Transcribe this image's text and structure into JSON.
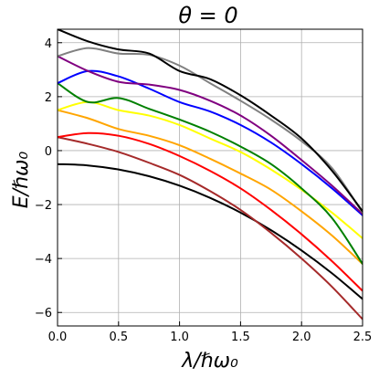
{
  "chart_data": {
    "type": "line",
    "title": "θ = 0",
    "xlabel": "λ/ℏω₀",
    "ylabel": "E/ℏω₀",
    "xlim": [
      0.0,
      2.5
    ],
    "ylim": [
      -6.5,
      4.5
    ],
    "grid": true,
    "x_ticks": [
      0.0,
      0.5,
      1.0,
      1.5,
      2.0,
      2.5
    ],
    "x_tick_labels": [
      "0.0",
      "0.5",
      "1.0",
      "1.5",
      "2.0",
      "2.5"
    ],
    "y_ticks": [
      4,
      2,
      0,
      -2,
      -4,
      -6
    ],
    "y_tick_labels": [
      "4",
      "2",
      "0",
      "−2",
      "−4",
      "−6"
    ],
    "series": [
      {
        "color": "#000000",
        "x": [
          0,
          0.25,
          0.5,
          0.75,
          1.0,
          1.25,
          1.5,
          1.75,
          2.0,
          2.25,
          2.5
        ],
        "values": [
          -0.5,
          -0.55,
          -0.7,
          -0.95,
          -1.3,
          -1.75,
          -2.3,
          -2.95,
          -3.7,
          -4.55,
          -5.5
        ]
      },
      {
        "color": "#a52a2a",
        "x": [
          0,
          0.25,
          0.5,
          0.75,
          1.0,
          1.25,
          1.5,
          1.75,
          2.0,
          2.25,
          2.5
        ],
        "values": [
          0.5,
          0.25,
          -0.05,
          -0.45,
          -0.9,
          -1.5,
          -2.2,
          -3.05,
          -4.0,
          -5.05,
          -6.25
        ]
      },
      {
        "color": "#ff0000",
        "x": [
          0,
          0.25,
          0.5,
          0.75,
          1.0,
          1.25,
          1.5,
          1.75,
          2.0,
          2.25,
          2.5
        ],
        "values": [
          0.5,
          0.65,
          0.55,
          0.25,
          -0.2,
          -0.75,
          -1.4,
          -2.2,
          -3.1,
          -4.1,
          -5.2
        ]
      },
      {
        "color": "#ffa500",
        "x": [
          0,
          0.25,
          0.5,
          0.75,
          1.0,
          1.25,
          1.5,
          1.75,
          2.0,
          2.25,
          2.5
        ],
        "values": [
          1.5,
          1.2,
          0.8,
          0.55,
          0.2,
          -0.3,
          -0.85,
          -1.45,
          -2.25,
          -3.15,
          -4.2
        ]
      },
      {
        "color": "#ffff00",
        "x": [
          0,
          0.25,
          0.5,
          0.75,
          1.0,
          1.25,
          1.5,
          1.75,
          2.0,
          2.25,
          2.5
        ],
        "values": [
          1.5,
          1.8,
          1.5,
          1.3,
          0.95,
          0.45,
          -0.05,
          -0.7,
          -1.45,
          -2.3,
          -3.25
        ]
      },
      {
        "color": "#008000",
        "x": [
          0,
          0.25,
          0.5,
          0.75,
          1.0,
          1.25,
          1.5,
          1.75,
          2.0,
          2.25,
          2.5
        ],
        "values": [
          2.5,
          1.8,
          1.95,
          1.55,
          1.15,
          0.7,
          0.15,
          -0.5,
          -1.4,
          -2.5,
          -4.2
        ]
      },
      {
        "color": "#0000ff",
        "x": [
          0,
          0.25,
          0.5,
          0.75,
          1.0,
          1.25,
          1.5,
          1.75,
          2.0,
          2.25,
          2.5
        ],
        "values": [
          2.5,
          2.95,
          2.75,
          2.3,
          1.8,
          1.45,
          0.95,
          0.3,
          -0.5,
          -1.4,
          -2.4
        ]
      },
      {
        "color": "#800080",
        "x": [
          0,
          0.25,
          0.5,
          0.75,
          1.0,
          1.25,
          1.5,
          1.75,
          2.0,
          2.25,
          2.5
        ],
        "values": [
          3.5,
          2.95,
          2.55,
          2.45,
          2.25,
          1.85,
          1.3,
          0.55,
          -0.35,
          -1.3,
          -2.35
        ]
      },
      {
        "color": "#808080",
        "x": [
          0,
          0.25,
          0.5,
          0.75,
          1.0,
          1.25,
          1.5,
          1.75,
          2.0,
          2.25,
          2.5
        ],
        "values": [
          3.5,
          3.8,
          3.6,
          3.55,
          3.15,
          2.5,
          1.85,
          1.15,
          0.35,
          -0.65,
          -2.3
        ]
      },
      {
        "color": "#000000",
        "x": [
          0,
          0.25,
          0.5,
          0.75,
          1.0,
          1.25,
          1.5,
          1.75,
          2.0,
          2.25,
          2.5
        ],
        "values": [
          4.5,
          4.05,
          3.75,
          3.6,
          2.95,
          2.65,
          2.05,
          1.3,
          0.45,
          -0.75,
          -2.25
        ]
      }
    ]
  }
}
